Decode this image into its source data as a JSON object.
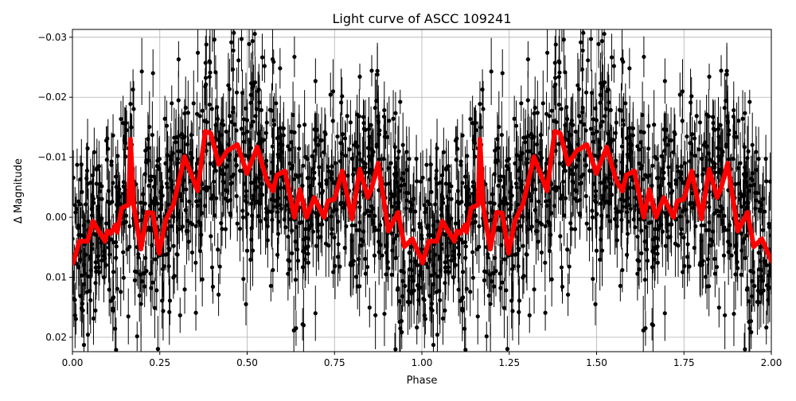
{
  "chart_data": {
    "type": "line",
    "title": "Light curve of ASCC 109241",
    "xlabel": "Phase",
    "ylabel": "Δ Magnitude",
    "xlim": [
      0,
      2
    ],
    "ylim": [
      0.0224,
      -0.0313
    ],
    "y_inverted": true,
    "grid": true,
    "x_ticks": [
      "0.00",
      "0.25",
      "0.50",
      "0.75",
      "1.00",
      "1.25",
      "1.50",
      "1.75",
      "2.00"
    ],
    "y_ticks": [
      "−0.03",
      "−0.02",
      "−0.01",
      "0.00",
      "0.01",
      "0.02"
    ],
    "x_tick_values": [
      0,
      0.25,
      0.5,
      0.75,
      1,
      1.25,
      1.5,
      1.75,
      2
    ],
    "y_tick_values": [
      -0.03,
      -0.02,
      -0.01,
      0,
      0.01,
      0.02
    ],
    "scatter": {
      "type": "errorbar",
      "color": "#000000",
      "description_visible": "black points with vertical error bars, phase-folded twice (0–2)"
    },
    "model_curve": {
      "color": "#ff0000",
      "repeat_period": 1,
      "phase": [
        0.002,
        0.02,
        0.043,
        0.059,
        0.093,
        0.1,
        0.11,
        0.123,
        0.128,
        0.141,
        0.161,
        0.166,
        0.175,
        0.196,
        0.214,
        0.23,
        0.248,
        0.267,
        0.289,
        0.321,
        0.358,
        0.38,
        0.396,
        0.419,
        0.442,
        0.472,
        0.499,
        0.529,
        0.556,
        0.574,
        0.585,
        0.608,
        0.635,
        0.651,
        0.67,
        0.692,
        0.72,
        0.731,
        0.75,
        0.772,
        0.8,
        0.822,
        0.845,
        0.856,
        0.875,
        0.904,
        0.932,
        0.95,
        0.973,
        1.0
      ],
      "magnitude": [
        0.0076,
        0.004,
        0.004,
        0.0007,
        0.004,
        0.0023,
        0.0027,
        0.0013,
        0.0025,
        -0.0015,
        -0.0021,
        -0.013,
        -0.0021,
        0.0053,
        -0.0008,
        -0.0007,
        0.006,
        0.0005,
        -0.0021,
        -0.0101,
        -0.0044,
        -0.0143,
        -0.014,
        -0.0088,
        -0.011,
        -0.0121,
        -0.0073,
        -0.0117,
        -0.0061,
        -0.0044,
        -0.007,
        -0.0077,
        0.0,
        -0.0046,
        0.0,
        -0.0033,
        0.0,
        -0.0027,
        -0.003,
        -0.0077,
        0.0003,
        -0.008,
        -0.0033,
        -0.0048,
        -0.009,
        0.0023,
        -0.0008,
        0.0049,
        0.0036,
        0.0073
      ]
    }
  }
}
